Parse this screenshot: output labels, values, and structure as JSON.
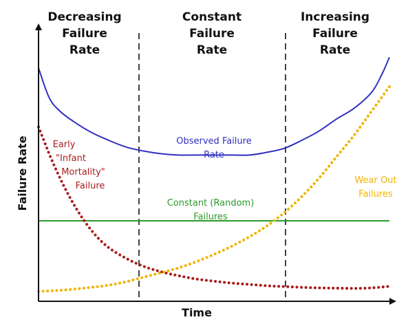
{
  "chart_data": {
    "type": "line",
    "title": "",
    "xlabel": "Time",
    "ylabel": "Failure Rate",
    "grid": false,
    "regions": [
      {
        "name": "decreasing",
        "lines": [
          "Decreasing",
          "Failure",
          "Rate"
        ]
      },
      {
        "name": "constant",
        "lines": [
          "Constant",
          "Failure",
          "Rate"
        ]
      },
      {
        "name": "increasing",
        "lines": [
          "Increasing",
          "Failure",
          "Rate"
        ]
      }
    ],
    "series": [
      {
        "name": "observed-failure-rate",
        "label_lines": [
          "Observed Failure",
          "Rate"
        ],
        "color": "#2f2fbf",
        "style": "solid",
        "points": [
          [
            0,
            0.87
          ],
          [
            0.03,
            0.76
          ],
          [
            0.06,
            0.71
          ],
          [
            0.1,
            0.67
          ],
          [
            0.15,
            0.63
          ],
          [
            0.2,
            0.6
          ],
          [
            0.25,
            0.575
          ],
          [
            0.3,
            0.56
          ],
          [
            0.35,
            0.55
          ],
          [
            0.4,
            0.545
          ],
          [
            0.45,
            0.545
          ],
          [
            0.5,
            0.545
          ],
          [
            0.55,
            0.545
          ],
          [
            0.6,
            0.545
          ],
          [
            0.65,
            0.555
          ],
          [
            0.7,
            0.57
          ],
          [
            0.75,
            0.6
          ],
          [
            0.8,
            0.635
          ],
          [
            0.85,
            0.68
          ],
          [
            0.9,
            0.72
          ],
          [
            0.95,
            0.78
          ],
          [
            0.98,
            0.85
          ],
          [
            1.0,
            0.91
          ]
        ]
      },
      {
        "name": "early-infant-mortality-failure",
        "label_lines": [
          "Early",
          "\"Infant",
          "Mortality\"",
          "Failure"
        ],
        "color": "#a81c1c",
        "style": "dotted",
        "points": [
          [
            0,
            0.65
          ],
          [
            0.04,
            0.52
          ],
          [
            0.08,
            0.41
          ],
          [
            0.12,
            0.32
          ],
          [
            0.16,
            0.25
          ],
          [
            0.2,
            0.2
          ],
          [
            0.25,
            0.16
          ],
          [
            0.3,
            0.13
          ],
          [
            0.35,
            0.11
          ],
          [
            0.4,
            0.095
          ],
          [
            0.45,
            0.083
          ],
          [
            0.5,
            0.075
          ],
          [
            0.55,
            0.068
          ],
          [
            0.6,
            0.063
          ],
          [
            0.65,
            0.058
          ],
          [
            0.7,
            0.055
          ],
          [
            0.75,
            0.052
          ],
          [
            0.8,
            0.05
          ],
          [
            0.85,
            0.049
          ],
          [
            0.9,
            0.048
          ],
          [
            0.95,
            0.05
          ],
          [
            1.0,
            0.056
          ]
        ]
      },
      {
        "name": "wear-out-failures",
        "label_lines": [
          "Wear Out",
          "Failures"
        ],
        "color": "#f0b400",
        "style": "dotted",
        "points": [
          [
            0,
            0.037
          ],
          [
            0.05,
            0.04
          ],
          [
            0.1,
            0.045
          ],
          [
            0.15,
            0.052
          ],
          [
            0.2,
            0.06
          ],
          [
            0.25,
            0.073
          ],
          [
            0.3,
            0.09
          ],
          [
            0.35,
            0.107
          ],
          [
            0.4,
            0.125
          ],
          [
            0.45,
            0.148
          ],
          [
            0.5,
            0.175
          ],
          [
            0.55,
            0.205
          ],
          [
            0.6,
            0.24
          ],
          [
            0.65,
            0.28
          ],
          [
            0.7,
            0.33
          ],
          [
            0.75,
            0.39
          ],
          [
            0.8,
            0.46
          ],
          [
            0.85,
            0.54
          ],
          [
            0.9,
            0.62
          ],
          [
            0.95,
            0.71
          ],
          [
            1.0,
            0.8
          ]
        ]
      },
      {
        "name": "constant-random-failures",
        "label_lines": [
          "Constant (Random)",
          "Failures"
        ],
        "color": "#2a9a2a",
        "style": "solid",
        "points": [
          [
            0,
            0.3
          ],
          [
            1.0,
            0.3
          ]
        ]
      }
    ]
  }
}
